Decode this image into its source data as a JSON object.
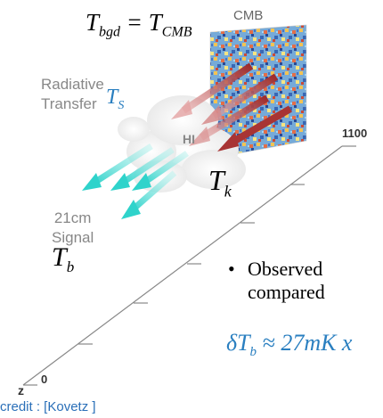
{
  "labels": {
    "temp_eq_lhs": "T",
    "temp_eq_lhs_sub": "bgd",
    "temp_eq_mid": " = T",
    "temp_eq_rhs_sub": "CMB",
    "cmb": "CMB",
    "radiative_line1": "Radiative",
    "radiative_line2": "Transfer",
    "ts_main": "T",
    "ts_sub": "S",
    "hi": "HI",
    "tk_main": "T",
    "tk_sub": "k",
    "signal_line1": "21cm",
    "signal_line2": "Signal",
    "tb_main": "T",
    "tb_sub": "b",
    "axis_top_tick": "1100",
    "axis_bottom_tick": "0",
    "axis_letter": "z",
    "bullet_text_line1": "Observed",
    "bullet_text_line2": "compared",
    "bullet_symbol": "•",
    "formula": "δT",
    "formula_sub": "b",
    "formula_rest": " ≈ 27mK x",
    "credit": "credit : [Kovetz ]"
  },
  "colors": {
    "cmb_text": "#666666",
    "gray_text": "#888888",
    "ts_color": "#2a7fc0",
    "formula_color": "#2a7fc0",
    "credit_color": "#2a6fb8",
    "arrow_red": "#b03b3b",
    "arrow_cyan": "#3fd8d0",
    "axis_color": "#888888"
  }
}
